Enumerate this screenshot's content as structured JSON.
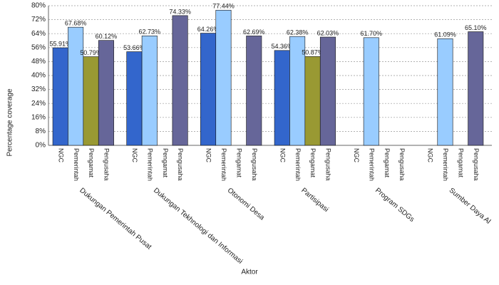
{
  "chart_data": {
    "type": "bar",
    "y_label": "Percentage coverage",
    "x_label": "Aktor",
    "categories": [
      "Dukungan Pemerintah Pusat",
      "Dukungan Tekhnologi dan Informasi",
      "Otonomi Desa",
      "Partisipasi",
      "Program SDGs",
      "Sumber Daya Al"
    ],
    "series": [
      {
        "name": "NGC",
        "color": "#3366cc",
        "values": [
          55.91,
          53.66,
          64.26,
          54.36,
          null,
          null
        ],
        "value_labels": [
          "55.91%",
          "53.66%",
          "64.26%",
          "54.36%",
          null,
          null
        ]
      },
      {
        "name": "Pemerintah",
        "color": "#99ccff",
        "values": [
          67.68,
          62.73,
          77.44,
          62.38,
          61.7,
          61.09
        ],
        "value_labels": [
          "67.68%",
          "62.73%",
          "77.44%",
          "62.38%",
          "61.70%",
          "61.09%"
        ]
      },
      {
        "name": "Pengamat",
        "color": "#999933",
        "values": [
          50.79,
          null,
          null,
          50.87,
          null,
          null
        ],
        "value_labels": [
          "50.79%",
          null,
          null,
          "50.87%",
          null,
          null
        ]
      },
      {
        "name": "Pengusaha",
        "color": "#666699",
        "values": [
          60.12,
          74.33,
          62.69,
          62.03,
          null,
          65.1
        ],
        "value_labels": [
          "60.12%",
          "74.33%",
          "62.69%",
          "62.03%",
          null,
          "65.10%"
        ]
      }
    ],
    "ylim": [
      0,
      80
    ],
    "yticks": [
      {
        "value": 0,
        "label": "0%"
      },
      {
        "value": 8,
        "label": "8%"
      },
      {
        "value": 16,
        "label": "16%"
      },
      {
        "value": 24,
        "label": "24%"
      },
      {
        "value": 32,
        "label": "32%"
      },
      {
        "value": 40,
        "label": "40%"
      },
      {
        "value": 48,
        "label": "48%"
      },
      {
        "value": 56,
        "label": "56%"
      },
      {
        "value": 64,
        "label": "64%"
      },
      {
        "value": 72,
        "label": "72%"
      },
      {
        "value": 80,
        "label": "80%"
      }
    ],
    "grid": true
  }
}
